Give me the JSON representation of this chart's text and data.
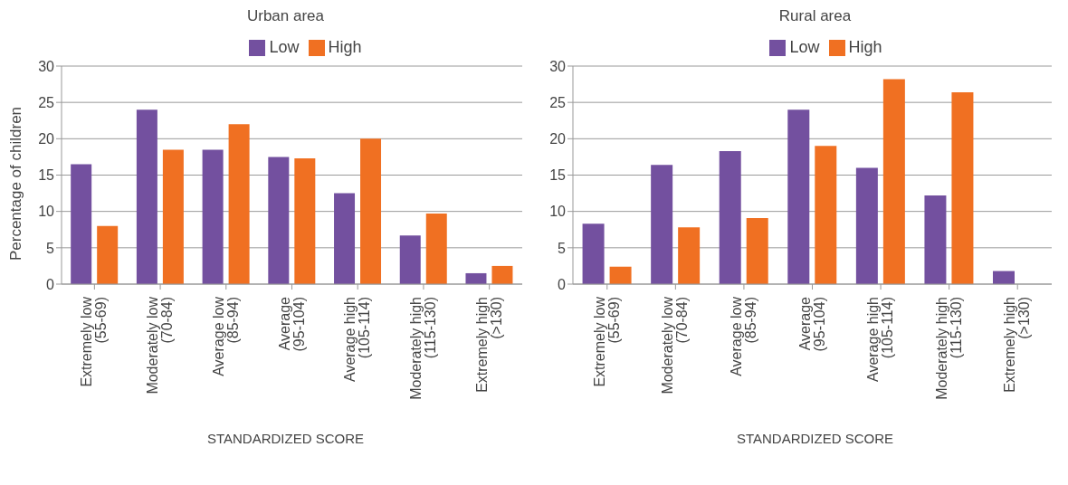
{
  "chart_data": [
    {
      "type": "bar",
      "title": "Urban area",
      "xlabel": "STANDARDIZED SCORE",
      "ylabel": "Percentage of children",
      "categories": [
        "Extremely low\n(55-69)",
        "Moderately low\n(70-84)",
        "Average low\n(85-94)",
        "Average\n(95-104)",
        "Average high\n(105-114)",
        "Moderately high\n(115-130)",
        "Extremely high\n(>130)"
      ],
      "series": [
        {
          "name": "Low",
          "color": "#73509f",
          "values": [
            16.5,
            24,
            18.5,
            17.5,
            12.5,
            6.7,
            1.5
          ]
        },
        {
          "name": "High",
          "color": "#f07022",
          "values": [
            8,
            18.5,
            22,
            17.3,
            20,
            9.7,
            2.5
          ]
        }
      ],
      "ylim": [
        0,
        30
      ],
      "yticks": [
        0,
        5,
        10,
        15,
        20,
        25,
        30
      ],
      "grid": "y",
      "legend": "top"
    },
    {
      "type": "bar",
      "title": "Rural area",
      "xlabel": "STANDARDIZED SCORE",
      "categories": [
        "Extremely low\n(55-69)",
        "Moderately low\n(70-84)",
        "Average low\n(85-94)",
        "Average\n(95-104)",
        "Average high\n(105-114)",
        "Moderately high\n(115-130)",
        "Extremely high\n(>130)"
      ],
      "series": [
        {
          "name": "Low",
          "color": "#73509f",
          "values": [
            8.3,
            16.4,
            18.3,
            24,
            16,
            12.2,
            1.8
          ]
        },
        {
          "name": "High",
          "color": "#f07022",
          "values": [
            2.4,
            7.8,
            9.1,
            19,
            28.2,
            26.4,
            null
          ]
        }
      ],
      "ylim": [
        0,
        30
      ],
      "yticks": [
        0,
        5,
        10,
        15,
        20,
        25,
        30
      ],
      "grid": "y",
      "legend": "top"
    }
  ]
}
